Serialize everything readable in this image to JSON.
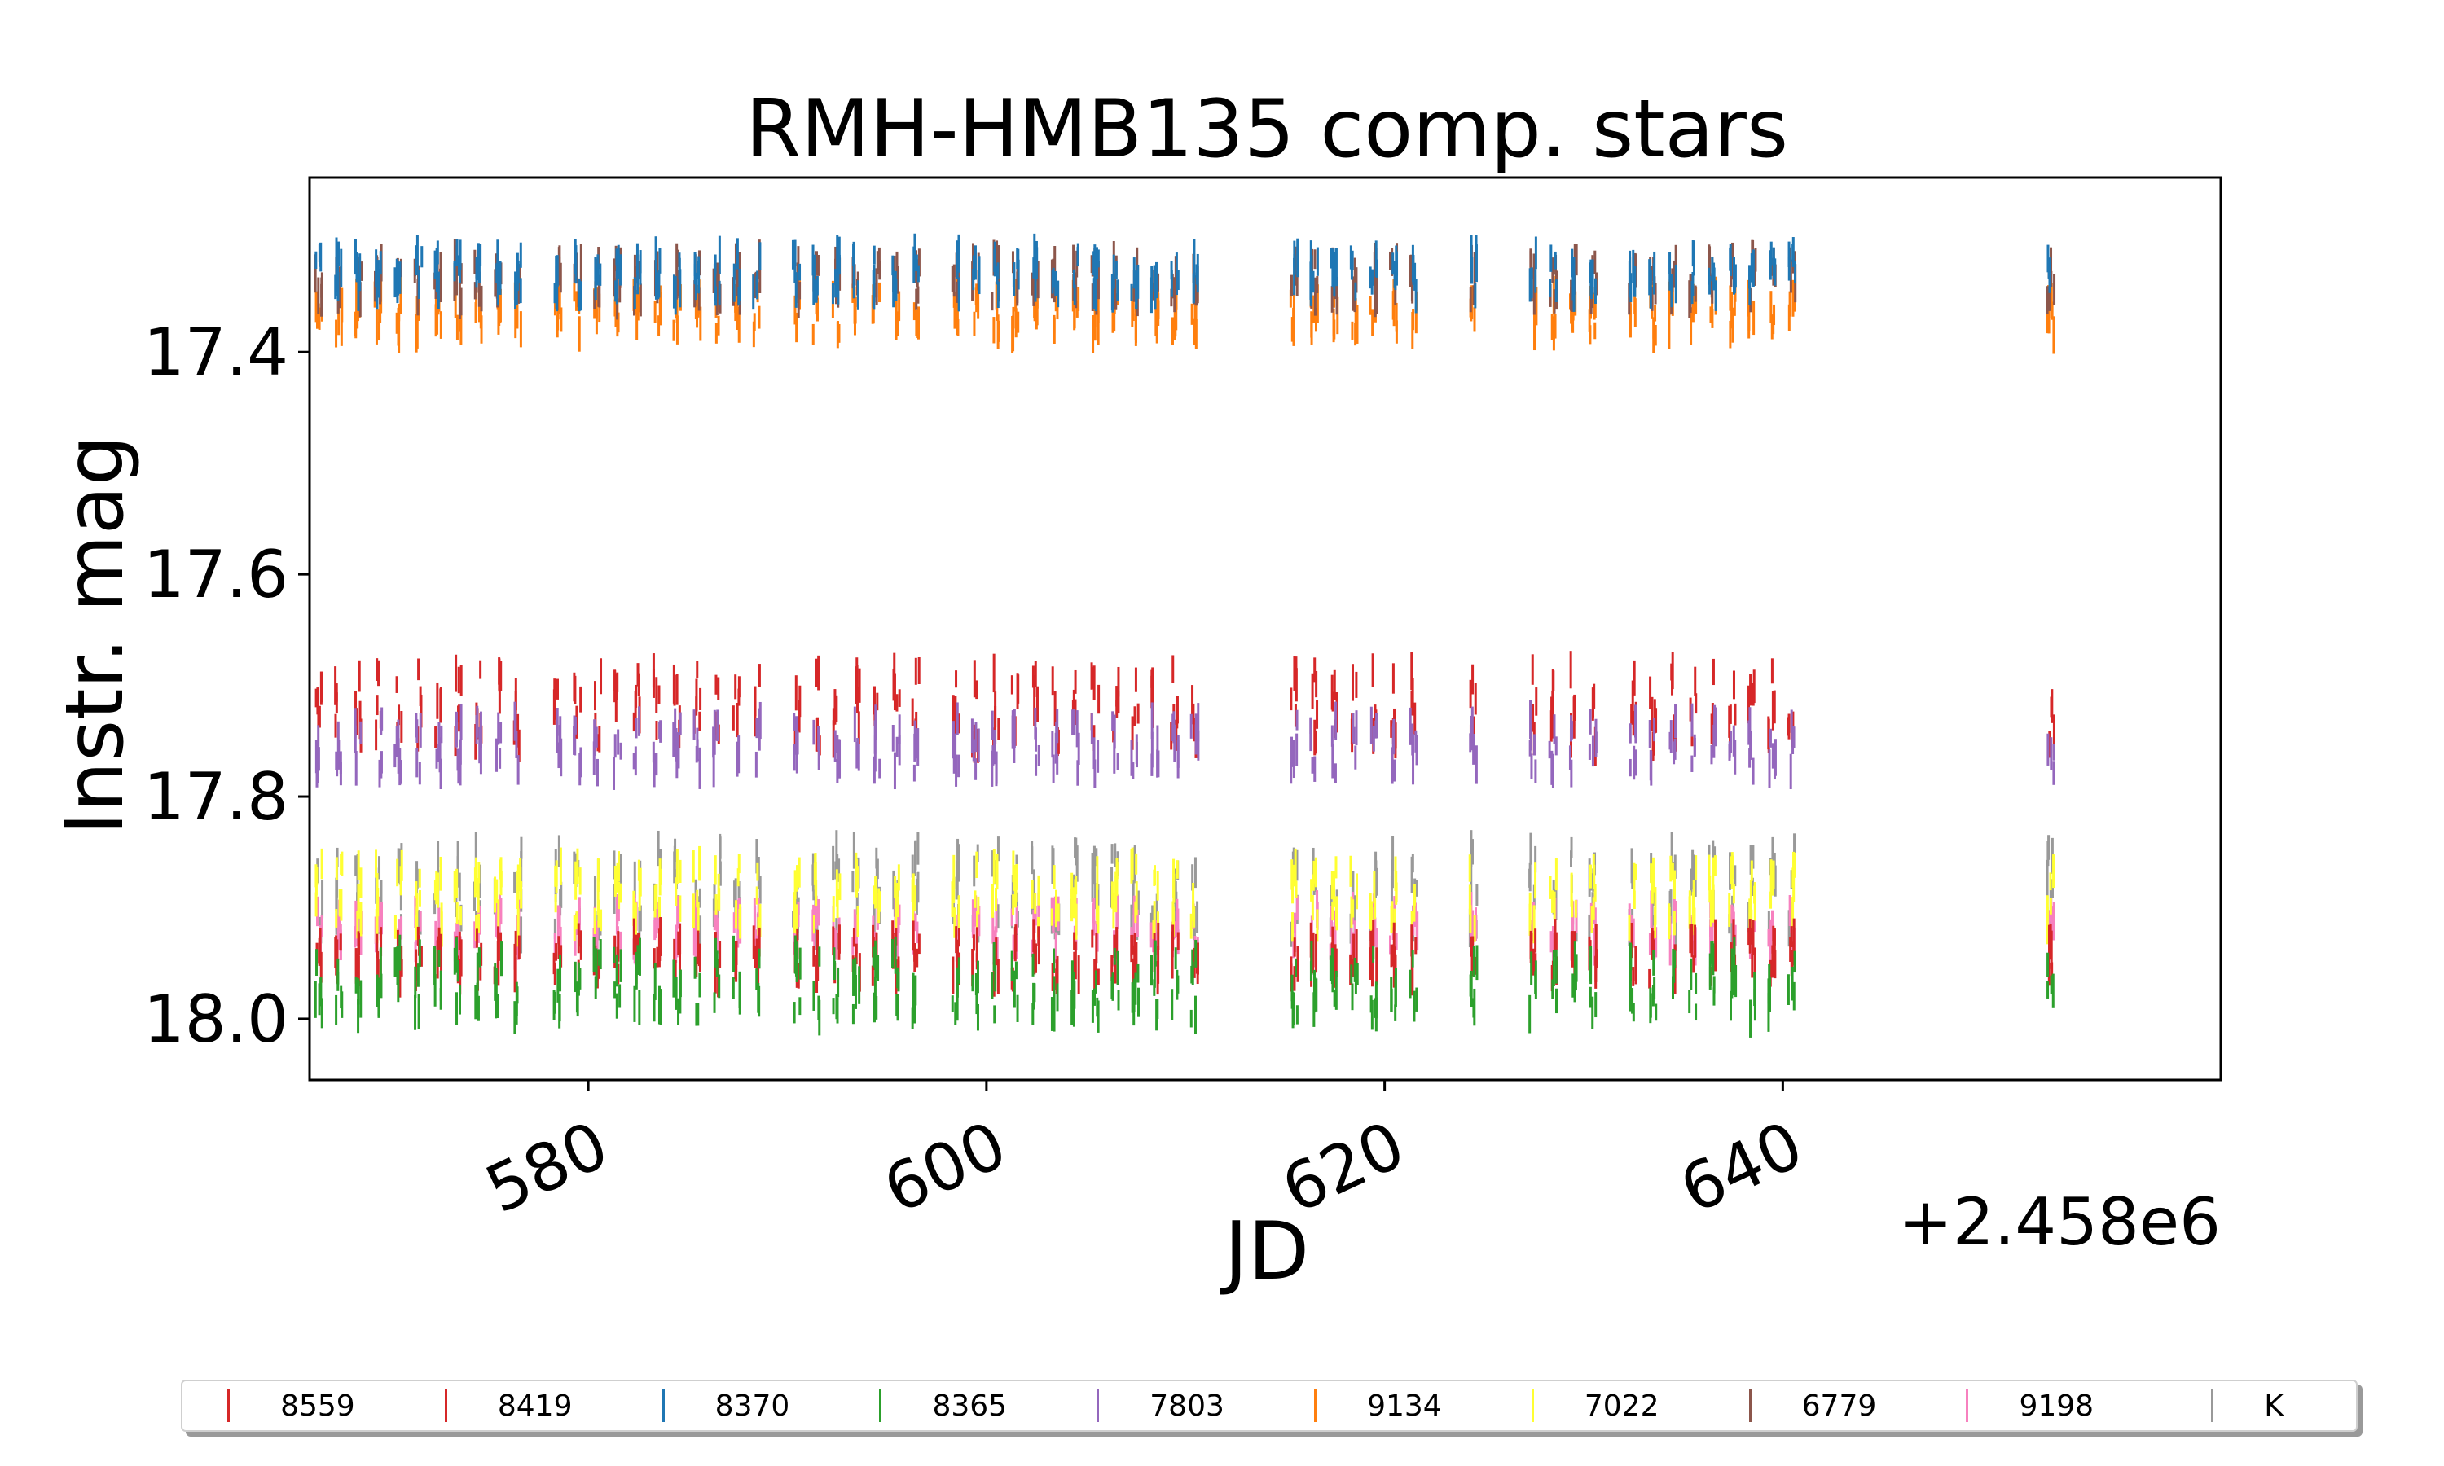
{
  "chart_data": {
    "type": "scatter",
    "title": "RMH-HMB135 comp. stars",
    "xlabel": "JD",
    "ylabel": "Instr. mag",
    "x_offset_label": "+2.458e6",
    "xlim": [
      566.0,
      662.0
    ],
    "ylim": [
      18.055,
      17.243
    ],
    "y_inverted": true,
    "x_ticks": [
      580,
      600,
      620,
      640
    ],
    "x_tick_labels": [
      "580",
      "600",
      "620",
      "640"
    ],
    "y_ticks": [
      17.4,
      17.6,
      17.8,
      18.0
    ],
    "y_tick_labels": [
      "17.4",
      "17.6",
      "17.8",
      "18.0"
    ],
    "marker": "vertical-line",
    "grid": false,
    "legend_position": "bottom",
    "observation_nights_jd": [
      566,
      567,
      568,
      569,
      570,
      571,
      572,
      573,
      574,
      575,
      576,
      578,
      579,
      580,
      581,
      582,
      583,
      584,
      585,
      586,
      587,
      588,
      590,
      591,
      592,
      593,
      594,
      595,
      596,
      598,
      599,
      600,
      601,
      602,
      603,
      604,
      605,
      606,
      607,
      608,
      609,
      610,
      615,
      616,
      617,
      618,
      619,
      620,
      621,
      624,
      627,
      628,
      629,
      630,
      632,
      633,
      634,
      635,
      636,
      637,
      638,
      639,
      640,
      653
    ],
    "series": [
      {
        "name": "8559",
        "color": "#d62728",
        "mean_mag": 17.72,
        "spread": 0.035
      },
      {
        "name": "8419",
        "color": "#d62728",
        "mean_mag": 17.945,
        "spread": 0.02
      },
      {
        "name": "8370",
        "color": "#1f77b4",
        "mean_mag": 17.33,
        "spread": 0.02
      },
      {
        "name": "8365",
        "color": "#2ca02c",
        "mean_mag": 17.97,
        "spread": 0.03
      },
      {
        "name": "7803",
        "color": "#9467bd",
        "mean_mag": 17.755,
        "spread": 0.025
      },
      {
        "name": "9134",
        "color": "#ff7f0e",
        "mean_mag": 17.365,
        "spread": 0.02
      },
      {
        "name": "7022",
        "color": "#ffff33",
        "mean_mag": 17.89,
        "spread": 0.03
      },
      {
        "name": "6779",
        "color": "#8c564b",
        "mean_mag": 17.335,
        "spread": 0.02
      },
      {
        "name": "9198",
        "color": "#f781bf",
        "mean_mag": 17.92,
        "spread": 0.02
      },
      {
        "name": "K",
        "color": "#999999",
        "mean_mag": 17.885,
        "spread": 0.04
      }
    ]
  }
}
